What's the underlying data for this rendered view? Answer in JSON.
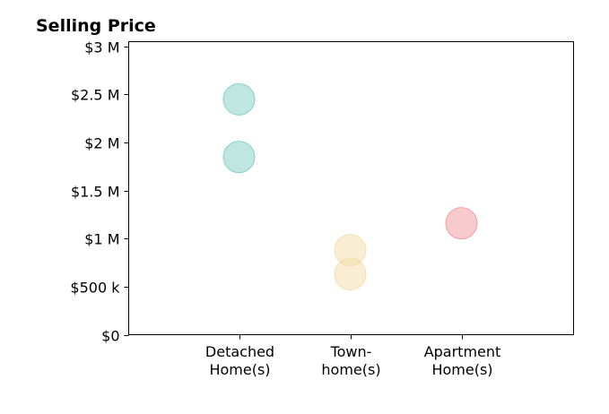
{
  "chart_data": {
    "type": "scatter",
    "title": "Selling Price",
    "xlabel": "",
    "ylabel": "",
    "categories": [
      "Detached\nHome(s)",
      "Town-\nhome(s)",
      "Apartment\nHome(s)"
    ],
    "y_ticks": [
      {
        "value": 0,
        "label": "$0"
      },
      {
        "value": 500000,
        "label": "$500 k"
      },
      {
        "value": 1000000,
        "label": "$1 M"
      },
      {
        "value": 1500000,
        "label": "$1.5 M"
      },
      {
        "value": 2000000,
        "label": "$2 M"
      },
      {
        "value": 2500000,
        "label": "$2.5 M"
      },
      {
        "value": 3000000,
        "label": "$3 M"
      }
    ],
    "ylim": [
      0,
      3050000
    ],
    "grid": false,
    "series": [
      {
        "category_index": 0,
        "values": [
          2450000,
          1850000
        ],
        "color": "#7fcdc4"
      },
      {
        "category_index": 1,
        "values": [
          880000,
          630000
        ],
        "color": "#f3dca7"
      },
      {
        "category_index": 2,
        "values": [
          1160000
        ],
        "color": "#f3959b"
      }
    ]
  }
}
